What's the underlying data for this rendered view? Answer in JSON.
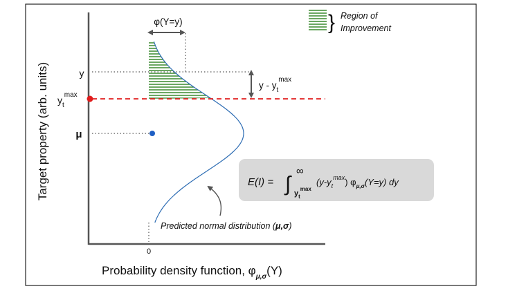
{
  "figure": {
    "y_axis_label": "Target property (arb. units)",
    "x_axis_label": "Probability density function, φ",
    "x_axis_label_subscript": "μ,σ",
    "x_axis_label_suffix": "(Y)",
    "zero_tick": "0",
    "tick_y": "y",
    "tick_ytmax_base": "y",
    "tick_ytmax_sub": "t",
    "tick_ytmax_sup": "max",
    "tick_mu": "μ",
    "phi_annotation": "φ(Y=y)",
    "delta_annotation_base": "y - y",
    "delta_annotation_sub": "t",
    "delta_annotation_sup": "max",
    "legend_label_line1": "Region of",
    "legend_label_line2": "Improvement",
    "curve_label": "Predicted normal distribution (",
    "curve_label_params": "μ,σ",
    "curve_label_close": ")",
    "formula": {
      "lhs": "E(I) = ",
      "integral_symbol": "∫",
      "upper_limit": "∞",
      "lower_limit_base": "y",
      "lower_limit_sub": "t",
      "lower_limit_sup": "max",
      "integrand_start": "(y-y",
      "integrand_sub": "t",
      "integrand_sup": "max",
      "integrand_mid": ") φ",
      "integrand_phi_sub": "μ,σ",
      "integrand_end": "(Y=y) dy"
    },
    "colors": {
      "curve": "#2e6db4",
      "hatch": "#3a8a2e",
      "threshold_line": "#e11d1d",
      "threshold_point": "#e11d1d",
      "mean_point": "#1f5fc4",
      "formula_box": "#d9d9d9"
    }
  }
}
